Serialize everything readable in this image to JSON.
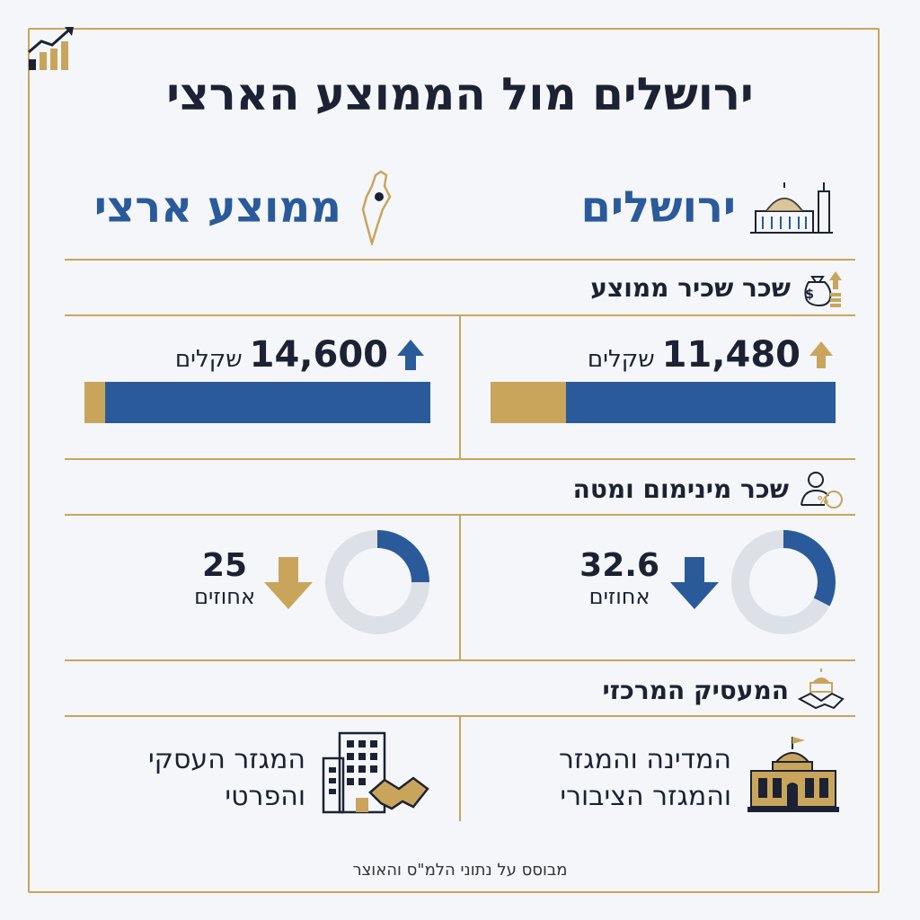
{
  "title": "ירושלים מול הממוצע הארצי",
  "columns": {
    "jerusalem": "ירושלים",
    "national": "ממוצע ארצי"
  },
  "sections": {
    "avg_salary": {
      "title": "שכר שכיר ממוצע",
      "jerusalem": {
        "value": "11,480",
        "unit": "שקלים",
        "trend": "up",
        "bar_gold_fraction": 0.22
      },
      "national": {
        "value": "14,600",
        "unit": "שקלים",
        "trend": "up",
        "bar_gold_fraction": 0.06
      }
    },
    "min_wage": {
      "title": "שכר מינימום ומטה",
      "jerusalem": {
        "value": "32.6",
        "unit": "אחוזים",
        "trend": "down",
        "percent": 32.6
      },
      "national": {
        "value": "25",
        "unit": "אחוזים",
        "trend": "down",
        "percent": 25
      }
    },
    "employer": {
      "title": "המעסיק המרכזי",
      "jerusalem": {
        "line1": "המדינה והמגזר",
        "line2": "והמגזר הציבורי"
      },
      "national": {
        "line1": "המגזר העסקי",
        "line2": "והפרטי"
      }
    }
  },
  "footer": "מבוסס על נתוני הלמ\"ס והאוצר",
  "colors": {
    "gold": "#c9a55c",
    "blue": "#2a5a9a",
    "navy": "#1c2233",
    "ring_bg": "#dde1e7"
  },
  "icons": {
    "corner": "chart-growth-icon",
    "jerusalem": "dome-of-the-rock-icon",
    "national": "israel-map-icon",
    "avg_salary": "money-bag-icon",
    "min_wage": "person-percent-icon",
    "employer": "handshake-building-icon",
    "jerusalem_employer": "government-building-icon",
    "national_employer": "office-handshake-icon"
  }
}
